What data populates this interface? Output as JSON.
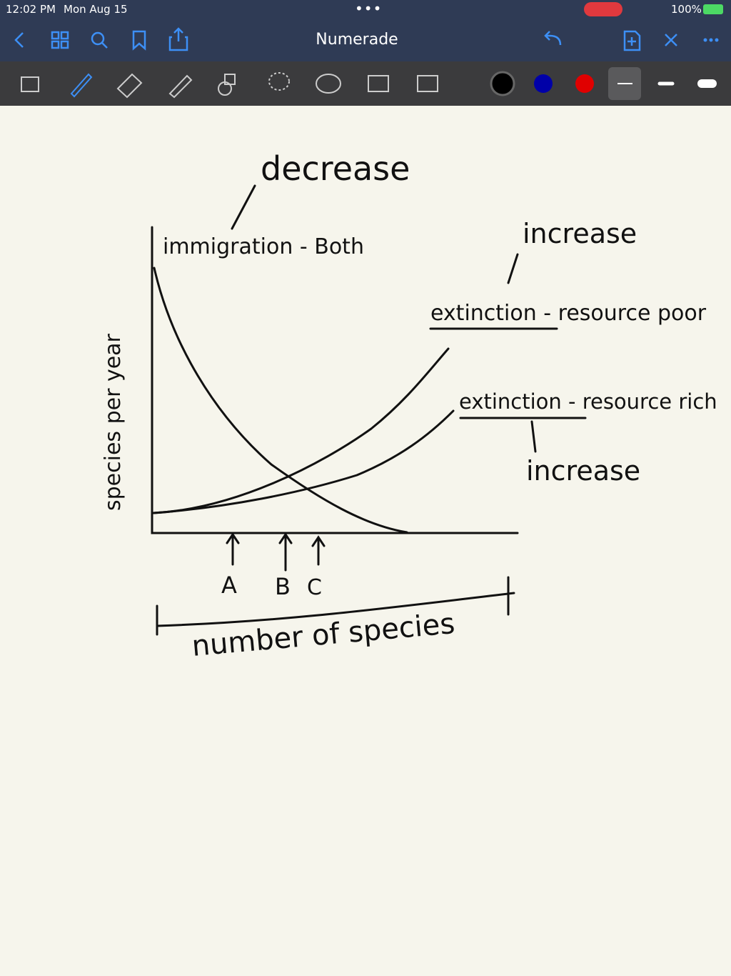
{
  "status_bar": {
    "time": "12:02 PM",
    "date": "Mon Aug 15",
    "battery": "100%"
  },
  "nav_bar": {
    "title": "Numerade"
  },
  "note": {
    "immigration_label": "immigration - Both",
    "immigration_note": "decrease",
    "extinction_poor_label": "extinction - resource poor",
    "extinction_poor_note": "increase",
    "extinction_rich_label": "extinction - resource rich",
    "extinction_rich_note": "increase",
    "y_axis_label": "species per year",
    "x_axis_label": "number of species",
    "points": [
      "A",
      "B",
      "C"
    ]
  }
}
